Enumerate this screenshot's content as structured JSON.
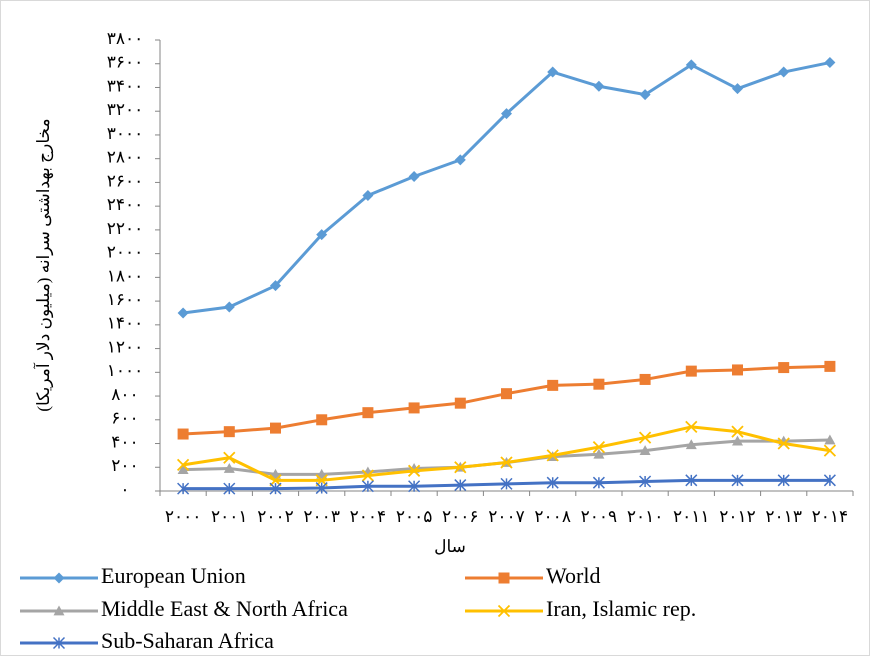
{
  "chart_data": {
    "type": "line",
    "y_label": "مخارج بهداشتی سرانه (میلیون دلار آمریکا)",
    "x_label": "سال",
    "categories": [
      "۲۰۰۰",
      "۲۰۰۱",
      "۲۰۰۲",
      "۲۰۰۳",
      "۲۰۰۴",
      "۲۰۰۵",
      "۲۰۰۶",
      "۲۰۰۷",
      "۲۰۰۸",
      "۲۰۰۹",
      "۲۰۱۰",
      "۲۰۱۱",
      "۲۰۱۲",
      "۲۰۱۳",
      "۲۰۱۴"
    ],
    "ylim": [
      0,
      3800
    ],
    "yticks": [
      {
        "value": 0,
        "label": "۰"
      },
      {
        "value": 200,
        "label": "۲۰۰"
      },
      {
        "value": 400,
        "label": "۴۰۰"
      },
      {
        "value": 600,
        "label": "۶۰۰"
      },
      {
        "value": 800,
        "label": "۸۰۰"
      },
      {
        "value": 1000,
        "label": "۱۰۰۰"
      },
      {
        "value": 1200,
        "label": "۱۲۰۰"
      },
      {
        "value": 1400,
        "label": "۱۴۰۰"
      },
      {
        "value": 1600,
        "label": "۱۶۰۰"
      },
      {
        "value": 1800,
        "label": "۱۸۰۰"
      },
      {
        "value": 2000,
        "label": "۲۰۰۰"
      },
      {
        "value": 2200,
        "label": "۲۲۰۰"
      },
      {
        "value": 2400,
        "label": "۲۴۰۰"
      },
      {
        "value": 2600,
        "label": "۲۶۰۰"
      },
      {
        "value": 2800,
        "label": "۲۸۰۰"
      },
      {
        "value": 3000,
        "label": "۳۰۰۰"
      },
      {
        "value": 3200,
        "label": "۳۲۰۰"
      },
      {
        "value": 3400,
        "label": "۳۴۰۰"
      },
      {
        "value": 3600,
        "label": "۳۶۰۰"
      },
      {
        "value": 3800,
        "label": "۳۸۰۰"
      }
    ],
    "grid": false,
    "legend": "bottom",
    "series": [
      {
        "name": "European Union",
        "color": "#5b9bd5",
        "marker": "diamond",
        "values": [
          1500,
          1550,
          1730,
          2160,
          2490,
          2650,
          2790,
          3180,
          3530,
          3410,
          3340,
          3590,
          3390,
          3530,
          3610
        ]
      },
      {
        "name": "World",
        "color": "#ed7d31",
        "marker": "square",
        "values": [
          480,
          500,
          530,
          600,
          660,
          700,
          740,
          820,
          890,
          900,
          940,
          1010,
          1020,
          1040,
          1050
        ]
      },
      {
        "name": "Middle East & North Africa",
        "color": "#a5a5a5",
        "marker": "triangle",
        "values": [
          180,
          190,
          140,
          140,
          160,
          190,
          200,
          240,
          290,
          310,
          340,
          390,
          420,
          420,
          430
        ]
      },
      {
        "name": "Iran, Islamic rep.",
        "color": "#ffc000",
        "marker": "x",
        "values": [
          220,
          280,
          90,
          90,
          130,
          170,
          200,
          240,
          300,
          370,
          450,
          540,
          500,
          400,
          340
        ]
      },
      {
        "name": "Sub-Saharan Africa",
        "color": "#4472c4",
        "marker": "star",
        "values": [
          20,
          20,
          20,
          25,
          40,
          40,
          50,
          60,
          70,
          70,
          80,
          90,
          90,
          90,
          90
        ]
      }
    ]
  }
}
